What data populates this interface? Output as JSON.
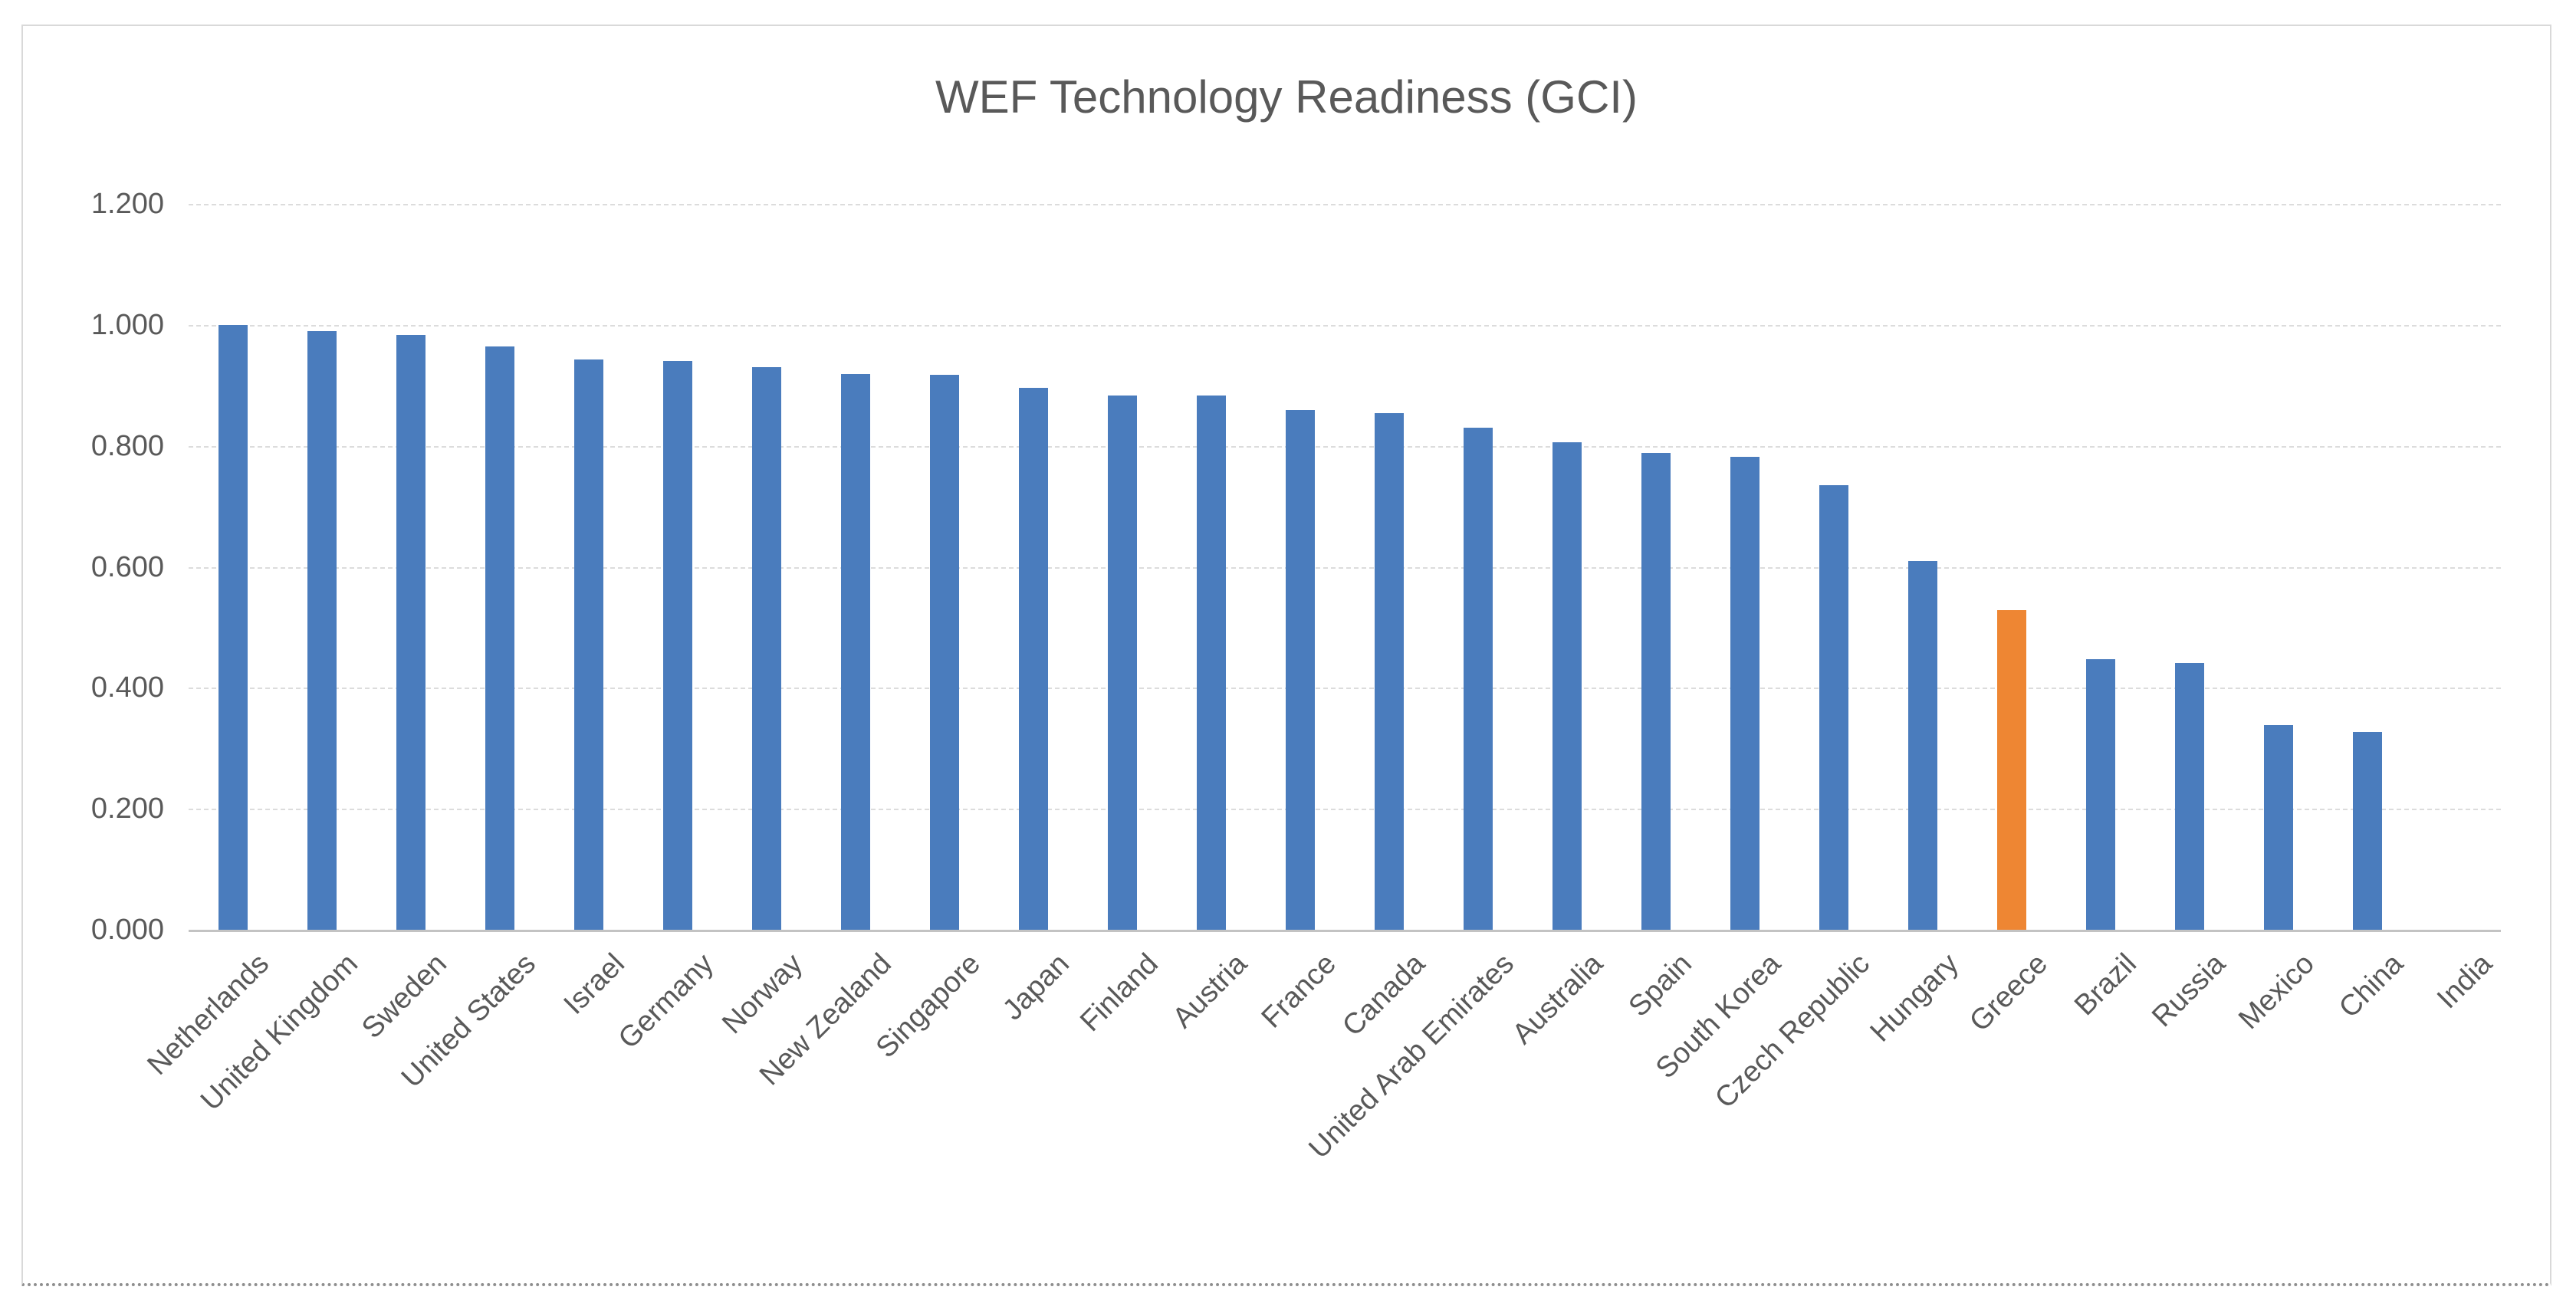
{
  "chart_data": {
    "type": "bar",
    "title": "WEF Technology Readiness (GCI)",
    "categories": [
      "Netherlands",
      "United Kingdom",
      "Sweden",
      "United States",
      "Israel",
      "Germany",
      "Norway",
      "New Zealand",
      "Singapore",
      "Japan",
      "Finland",
      "Austria",
      "France",
      "Canada",
      "United Arab Emirates",
      "Australia",
      "Spain",
      "South Korea",
      "Czech Republic",
      "Hungary",
      "Greece",
      "Brazil",
      "Russia",
      "Mexico",
      "China",
      "India"
    ],
    "values": [
      1.0,
      0.99,
      0.984,
      0.965,
      0.943,
      0.941,
      0.93,
      0.919,
      0.918,
      0.896,
      0.884,
      0.883,
      0.859,
      0.854,
      0.83,
      0.806,
      0.788,
      0.782,
      0.735,
      0.61,
      0.528,
      0.447,
      0.441,
      0.339,
      0.327,
      0.0
    ],
    "highlight_category": "Greece",
    "series_name": "",
    "xlabel": "",
    "ylabel": "",
    "ylim": [
      0,
      1.2
    ],
    "y_tick_interval": 0.2,
    "y_tick_labels": [
      "0.000",
      "0.200",
      "0.400",
      "0.600",
      "0.800",
      "1.000",
      "1.200"
    ],
    "grid": "horizontal-dashed",
    "legend": "none",
    "colors": {
      "bar": "#4a7cbd",
      "highlight_bar": "#ee8633",
      "gridline": "#dcdcdc",
      "axis_line": "#c3c3c3",
      "text": "#595959",
      "frame_border": "#d9d9d9",
      "background": "#ffffff"
    }
  }
}
